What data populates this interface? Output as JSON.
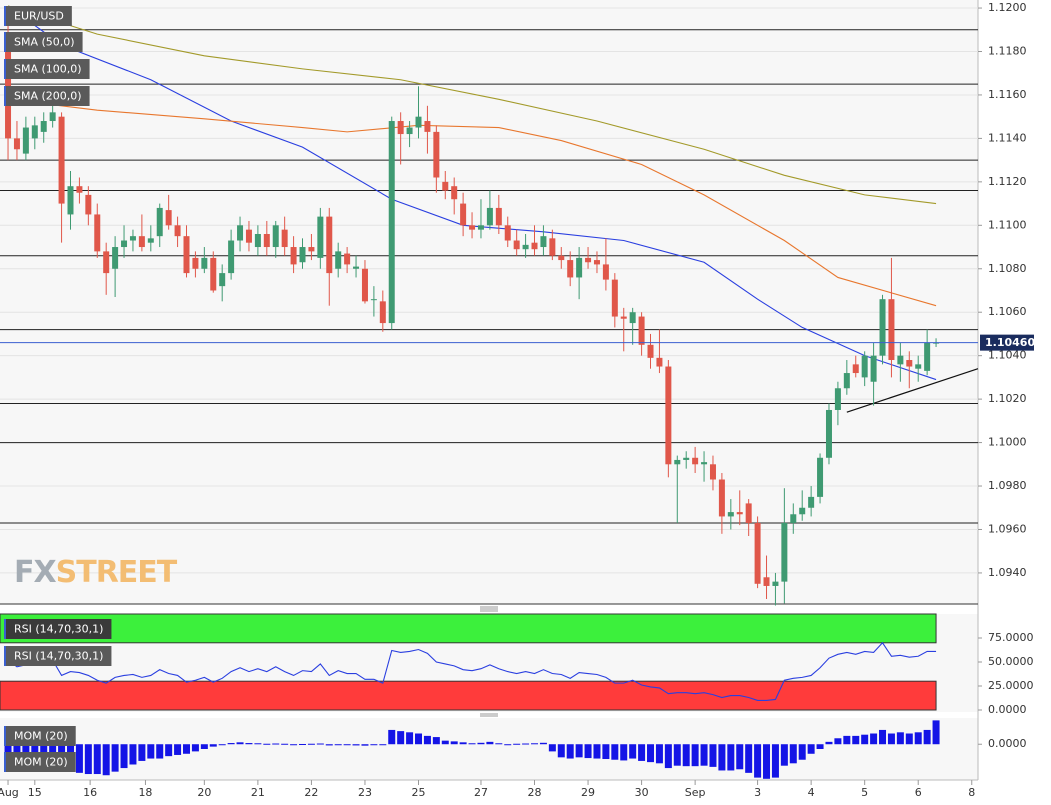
{
  "chart_data": [
    {
      "type": "candlestick",
      "title": "EUR/USD",
      "watermark": [
        "FX",
        "STREET"
      ],
      "up_color": "#3f9a72",
      "down_color": "#e0574a",
      "xlim": [
        -0.9,
        108.7
      ],
      "ylim": [
        1.09257,
        1.12037
      ],
      "yticks": [
        {
          "value": 1.12,
          "label": "1.1200"
        },
        {
          "value": 1.118,
          "label": "1.1180"
        },
        {
          "value": 1.116,
          "label": "1.1160"
        },
        {
          "value": 1.114,
          "label": "1.1140"
        },
        {
          "value": 1.112,
          "label": "1.1120"
        },
        {
          "value": 1.11,
          "label": "1.1100"
        },
        {
          "value": 1.108,
          "label": "1.1080"
        },
        {
          "value": 1.106,
          "label": "1.1060"
        },
        {
          "value": 1.104,
          "label": "1.1040"
        },
        {
          "value": 1.102,
          "label": "1.1020"
        },
        {
          "value": 1.1,
          "label": "1.1000"
        },
        {
          "value": 1.098,
          "label": "1.0980"
        },
        {
          "value": 1.096,
          "label": "1.0960"
        },
        {
          "value": 1.094,
          "label": "1.0940"
        }
      ],
      "xticks": [
        {
          "value": 0,
          "label": "Aug"
        },
        {
          "value": 3,
          "label": "15"
        },
        {
          "value": 9.2,
          "label": "16"
        },
        {
          "value": 15.4,
          "label": "18"
        },
        {
          "value": 22,
          "label": "20"
        },
        {
          "value": 28,
          "label": "21"
        },
        {
          "value": 34,
          "label": "22"
        },
        {
          "value": 40,
          "label": "23"
        },
        {
          "value": 46,
          "label": "25"
        },
        {
          "value": 53,
          "label": "27"
        },
        {
          "value": 59,
          "label": "28"
        },
        {
          "value": 65,
          "label": "29"
        },
        {
          "value": 71,
          "label": "30"
        },
        {
          "value": 77,
          "label": "Sep"
        },
        {
          "value": 84,
          "label": "3"
        },
        {
          "value": 90,
          "label": "4"
        },
        {
          "value": 96,
          "label": "5"
        },
        {
          "value": 102,
          "label": "6"
        },
        {
          "value": 108,
          "label": "8"
        }
      ],
      "grid": true,
      "levels": [
        1.119,
        1.1165,
        1.113,
        1.1116,
        1.1086,
        1.1052,
        1.1018,
        1.1,
        1.0963
      ],
      "last_price": {
        "value": 1.1046,
        "label": "1.10460",
        "color": "#1a2c5e"
      },
      "trendline": {
        "x": [
          94,
          108.7
        ],
        "values": [
          1.1014,
          1.1034
        ]
      },
      "candles": [
        [
          1.1182,
          1.1195,
          1.113,
          1.114
        ],
        [
          1.114,
          1.1148,
          1.113,
          1.1135
        ],
        [
          1.1133,
          1.115,
          1.113,
          1.1145
        ],
        [
          1.114,
          1.115,
          1.1135,
          1.1146
        ],
        [
          1.1143,
          1.1152,
          1.1138,
          1.1148
        ],
        [
          1.1148,
          1.1158,
          1.1145,
          1.1152
        ],
        [
          1.115,
          1.1152,
          1.1092,
          1.111
        ],
        [
          1.1105,
          1.1125,
          1.1098,
          1.1118
        ],
        [
          1.1118,
          1.1122,
          1.111,
          1.1115
        ],
        [
          1.1114,
          1.1118,
          1.11,
          1.1105
        ],
        [
          1.1105,
          1.111,
          1.1085,
          1.1088
        ],
        [
          1.1088,
          1.1092,
          1.1068,
          1.1078
        ],
        [
          1.108,
          1.1095,
          1.1067,
          1.109
        ],
        [
          1.109,
          1.11,
          1.1085,
          1.1093
        ],
        [
          1.1093,
          1.1098,
          1.1088,
          1.1095
        ],
        [
          1.1095,
          1.1105,
          1.1088,
          1.109
        ],
        [
          1.1092,
          1.11,
          1.1088,
          1.1094
        ],
        [
          1.1095,
          1.111,
          1.109,
          1.1108
        ],
        [
          1.1107,
          1.1114,
          1.1098,
          1.11
        ],
        [
          1.11,
          1.1104,
          1.109,
          1.1095
        ],
        [
          1.1095,
          1.11,
          1.1076,
          1.1078
        ],
        [
          1.1085,
          1.1088,
          1.1076,
          1.108
        ],
        [
          1.108,
          1.109,
          1.1078,
          1.1085
        ],
        [
          1.1085,
          1.1088,
          1.1069,
          1.107
        ],
        [
          1.1072,
          1.1082,
          1.1065,
          1.1078
        ],
        [
          1.1078,
          1.1098,
          1.1075,
          1.1093
        ],
        [
          1.1093,
          1.1104,
          1.1088,
          1.11
        ],
        [
          1.1098,
          1.1102,
          1.1088,
          1.1092
        ],
        [
          1.109,
          1.11,
          1.1086,
          1.1096
        ],
        [
          1.1096,
          1.1102,
          1.1086,
          1.109
        ],
        [
          1.109,
          1.1102,
          1.1085,
          1.11
        ],
        [
          1.1098,
          1.1104,
          1.1086,
          1.109
        ],
        [
          1.109,
          1.1095,
          1.1078,
          1.1082
        ],
        [
          1.1083,
          1.1094,
          1.108,
          1.109
        ],
        [
          1.109,
          1.1096,
          1.1084,
          1.1088
        ],
        [
          1.1085,
          1.1108,
          1.108,
          1.1104
        ],
        [
          1.1104,
          1.1108,
          1.1063,
          1.1078
        ],
        [
          1.108,
          1.1092,
          1.1076,
          1.1088
        ],
        [
          1.1087,
          1.109,
          1.1078,
          1.1082
        ],
        [
          1.108,
          1.1086,
          1.1076,
          1.1081
        ],
        [
          1.108,
          1.1084,
          1.1064,
          1.1065
        ],
        [
          1.1066,
          1.1072,
          1.1058,
          1.1066
        ],
        [
          1.1065,
          1.107,
          1.1051,
          1.1055
        ],
        [
          1.1055,
          1.115,
          1.1052,
          1.1148
        ],
        [
          1.1148,
          1.1152,
          1.1128,
          1.1142
        ],
        [
          1.1142,
          1.1148,
          1.1136,
          1.1145
        ],
        [
          1.1145,
          1.1164,
          1.114,
          1.115
        ],
        [
          1.1148,
          1.1155,
          1.1133,
          1.1143
        ],
        [
          1.1143,
          1.1146,
          1.1115,
          1.1122
        ],
        [
          1.112,
          1.1125,
          1.1112,
          1.1116
        ],
        [
          1.1118,
          1.1122,
          1.1105,
          1.1112
        ],
        [
          1.111,
          1.1115,
          1.1095,
          1.11
        ],
        [
          1.11,
          1.1106,
          1.1094,
          1.1098
        ],
        [
          1.1098,
          1.1112,
          1.1094,
          1.11
        ],
        [
          1.11,
          1.1116,
          1.1098,
          1.1108
        ],
        [
          1.1108,
          1.1114,
          1.1096,
          1.11
        ],
        [
          1.11,
          1.1104,
          1.109,
          1.1093
        ],
        [
          1.1093,
          1.1098,
          1.1086,
          1.1089
        ],
        [
          1.1089,
          1.1096,
          1.1085,
          1.1091
        ],
        [
          1.1092,
          1.11,
          1.1086,
          1.1089
        ],
        [
          1.109,
          1.11,
          1.1086,
          1.1095
        ],
        [
          1.1094,
          1.1098,
          1.1084,
          1.1086
        ],
        [
          1.1086,
          1.109,
          1.108,
          1.1084
        ],
        [
          1.1084,
          1.1088,
          1.1072,
          1.1076
        ],
        [
          1.1076,
          1.109,
          1.1066,
          1.1085
        ],
        [
          1.1085,
          1.109,
          1.108,
          1.1083
        ],
        [
          1.1084,
          1.1088,
          1.1078,
          1.1082
        ],
        [
          1.1082,
          1.1094,
          1.107,
          1.1075
        ],
        [
          1.1075,
          1.1078,
          1.1053,
          1.1058
        ],
        [
          1.1058,
          1.1062,
          1.1042,
          1.1057
        ],
        [
          1.1055,
          1.1062,
          1.1045,
          1.106
        ],
        [
          1.1058,
          1.106,
          1.104,
          1.1045
        ],
        [
          1.1045,
          1.105,
          1.1034,
          1.1039
        ],
        [
          1.1039,
          1.1052,
          1.1032,
          1.1035
        ],
        [
          1.1035,
          1.1038,
          1.0984,
          1.099
        ],
        [
          1.099,
          1.0994,
          1.0963,
          1.0992
        ],
        [
          1.0992,
          1.0996,
          1.0988,
          1.0993
        ],
        [
          1.0993,
          1.0998,
          1.0986,
          1.099
        ],
        [
          1.099,
          1.0996,
          1.0982,
          1.0991
        ],
        [
          1.099,
          1.0994,
          1.0978,
          1.0983
        ],
        [
          1.0983,
          1.0986,
          1.0958,
          1.0966
        ],
        [
          1.0966,
          1.0974,
          1.096,
          1.0968
        ],
        [
          1.0968,
          1.0978,
          1.0962,
          1.0967
        ],
        [
          1.0972,
          1.0974,
          1.0957,
          1.0963
        ],
        [
          1.0963,
          1.0966,
          1.0933,
          1.0935
        ],
        [
          1.0938,
          1.0948,
          1.0928,
          1.0934
        ],
        [
          1.0934,
          1.094,
          1.0925,
          1.0936
        ],
        [
          1.0936,
          1.0979,
          1.0926,
          1.0963
        ],
        [
          1.0963,
          1.0972,
          1.0958,
          1.0967
        ],
        [
          1.0967,
          1.0978,
          1.0964,
          1.097
        ],
        [
          1.097,
          1.098,
          1.0966,
          1.0975
        ],
        [
          1.0975,
          1.0995,
          1.0972,
          1.0993
        ],
        [
          1.0993,
          1.1018,
          1.099,
          1.1015
        ],
        [
          1.1015,
          1.1028,
          1.1008,
          1.1025
        ],
        [
          1.1025,
          1.1038,
          1.1022,
          1.1032
        ],
        [
          1.1036,
          1.104,
          1.103,
          1.1032
        ],
        [
          1.103,
          1.1042,
          1.1026,
          1.104
        ],
        [
          1.1028,
          1.1046,
          1.1017,
          1.104
        ],
        [
          1.104,
          1.1068,
          1.1036,
          1.1066
        ],
        [
          1.1066,
          1.1085,
          1.103,
          1.1038
        ],
        [
          1.1036,
          1.1046,
          1.1028,
          1.104
        ],
        [
          1.1038,
          1.1042,
          1.1025,
          1.1035
        ],
        [
          1.1034,
          1.104,
          1.1028,
          1.1036
        ],
        [
          1.1033,
          1.1052,
          1.1031,
          1.1046
        ],
        [
          1.1046,
          1.1048,
          1.1044,
          1.1046
        ]
      ],
      "series": [
        {
          "name": "SMA (50,0)",
          "color": "#2a3fe0",
          "x": [
            1,
            6,
            16,
            25,
            33,
            43,
            51,
            60,
            69,
            78,
            84,
            89,
            96,
            104
          ],
          "values": [
            1.1198,
            1.1183,
            1.1167,
            1.1148,
            1.1136,
            1.1112,
            1.11,
            1.1097,
            1.1093,
            1.1083,
            1.1066,
            1.1053,
            1.104,
            1.1029
          ]
        },
        {
          "name": "SMA (100,0)",
          "color": "#e8772e",
          "x": [
            0,
            10,
            22,
            33,
            38,
            46,
            55,
            62,
            71,
            78,
            87,
            93,
            104
          ],
          "values": [
            1.1158,
            1.1153,
            1.1149,
            1.1145,
            1.1143,
            1.1146,
            1.1145,
            1.1139,
            1.1128,
            1.1114,
            1.1093,
            1.1076,
            1.1063
          ]
        },
        {
          "name": "SMA (200,0)",
          "color": "#a39a2a",
          "x": [
            0,
            10,
            22,
            33,
            44,
            55,
            66,
            78,
            87,
            96,
            104
          ],
          "values": [
            1.1201,
            1.1188,
            1.1178,
            1.1172,
            1.1167,
            1.1158,
            1.1148,
            1.1135,
            1.1123,
            1.1114,
            1.111
          ]
        }
      ]
    },
    {
      "type": "line",
      "title": "RSI (14,70,30,1)",
      "ylim": [
        0,
        100
      ],
      "yticks": [
        {
          "value": 75,
          "label": "75.0000"
        },
        {
          "value": 50,
          "label": "50.0000"
        },
        {
          "value": 25,
          "label": "25.0000"
        },
        {
          "value": 0,
          "label": "0.0000"
        }
      ],
      "bands": [
        {
          "from": 70,
          "to": 100,
          "color": "#3cf03c"
        },
        {
          "from": 0,
          "to": 30,
          "color": "#ff3b3b"
        }
      ],
      "series": [
        {
          "name": "RSI (14,70,30,1)",
          "color": "#2a3fe0",
          "values": [
            52,
            45,
            47,
            49,
            50,
            52,
            36,
            40,
            39,
            36,
            31,
            28,
            34,
            36,
            37,
            34,
            36,
            42,
            38,
            36,
            29,
            31,
            34,
            29,
            33,
            40,
            44,
            40,
            43,
            40,
            45,
            40,
            36,
            41,
            40,
            48,
            36,
            41,
            38,
            38,
            32,
            32,
            28,
            62,
            60,
            61,
            63,
            59,
            50,
            48,
            46,
            42,
            41,
            43,
            47,
            43,
            40,
            38,
            40,
            38,
            42,
            38,
            37,
            33,
            39,
            38,
            37,
            34,
            28,
            28,
            31,
            26,
            24,
            23,
            17,
            18,
            18,
            17,
            18,
            16,
            13,
            15,
            15,
            13,
            10,
            10,
            11,
            31,
            33,
            34,
            36,
            44,
            54,
            58,
            60,
            58,
            61,
            60,
            70,
            56,
            57,
            55,
            56,
            61,
            61
          ]
        }
      ]
    },
    {
      "type": "bar",
      "title": "MOM (20)",
      "ylim": [
        -0.015,
        0.011
      ],
      "yticks": [
        {
          "value": 0,
          "label": "0.0000"
        }
      ],
      "series": [
        {
          "name": "MOM (20)",
          "color": "#1414e6",
          "values": [
            -0.01,
            -0.01,
            -0.0095,
            -0.009,
            -0.009,
            -0.0085,
            -0.008,
            -0.011,
            -0.012,
            -0.0125,
            -0.0125,
            -0.013,
            -0.0115,
            -0.01,
            -0.0085,
            -0.007,
            -0.006,
            -0.006,
            -0.005,
            -0.0045,
            -0.004,
            -0.003,
            -0.002,
            -0.001,
            -0.0003,
            0.0005,
            0.0008,
            0.0005,
            0.0004,
            0.0002,
            0.0003,
            0.0002,
            -0.0003,
            0.0001,
            0.0002,
            0.0003,
            -0.0005,
            -0.0003,
            -0.0004,
            -0.0005,
            -0.0006,
            -0.0004,
            -0.0003,
            0.006,
            0.0055,
            0.005,
            0.0045,
            0.0035,
            0.003,
            0.0015,
            0.0012,
            0.0008,
            0.0004,
            0.0006,
            0.001,
            0.0004,
            -0.0002,
            0.0002,
            0.0003,
            0.0004,
            0.0006,
            -0.003,
            -0.0055,
            -0.006,
            -0.0055,
            -0.0058,
            -0.006,
            -0.0062,
            -0.0065,
            -0.0068,
            -0.006,
            -0.007,
            -0.0075,
            -0.008,
            -0.01,
            -0.009,
            -0.0092,
            -0.0092,
            -0.009,
            -0.0095,
            -0.011,
            -0.011,
            -0.0105,
            -0.012,
            -0.014,
            -0.0145,
            -0.014,
            -0.009,
            -0.008,
            -0.0065,
            -0.004,
            -0.002,
            0.001,
            0.0025,
            0.0035,
            0.0035,
            0.004,
            0.0045,
            0.006,
            0.0045,
            0.005,
            0.0045,
            0.005,
            0.006,
            0.01
          ]
        }
      ]
    }
  ]
}
